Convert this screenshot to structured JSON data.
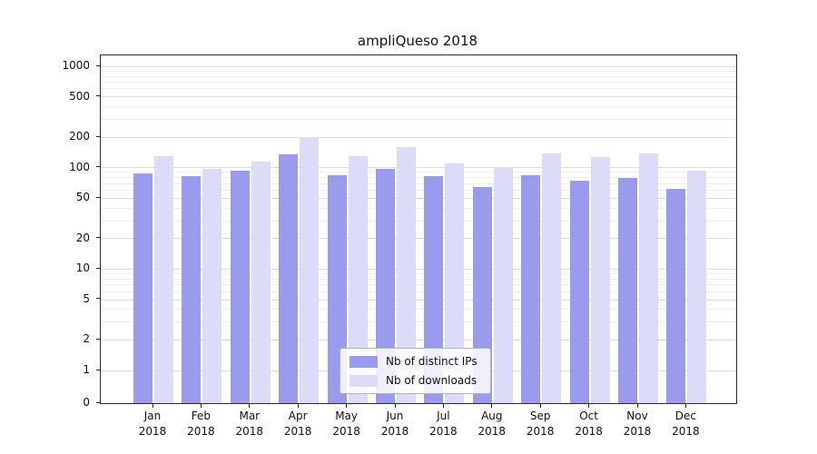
{
  "chart_data": {
    "type": "bar",
    "title": "ampliQueso 2018",
    "categories": [
      "Jan",
      "Feb",
      "Mar",
      "Apr",
      "May",
      "Jun",
      "Jul",
      "Aug",
      "Sep",
      "Oct",
      "Nov",
      "Dec"
    ],
    "x_year": "2018",
    "series": [
      {
        "name": "Nb of distinct IPs",
        "color": "#9b9bee",
        "values": [
          88,
          82,
          93,
          135,
          85,
          97,
          82,
          65,
          85,
          75,
          80,
          62
        ]
      },
      {
        "name": "Nb of downloads",
        "color": "#dcdcf9",
        "values": [
          130,
          97,
          115,
          200,
          130,
          160,
          110,
          100,
          140,
          128,
          138,
          93
        ]
      }
    ],
    "yscale": "symlog",
    "y_ticks": [
      0,
      1,
      2,
      5,
      10,
      20,
      50,
      100,
      200,
      500,
      1000
    ],
    "ylim": [
      0,
      1300
    ],
    "xlabel": "",
    "ylabel": "",
    "grid": true,
    "legend_position": "lower center"
  }
}
